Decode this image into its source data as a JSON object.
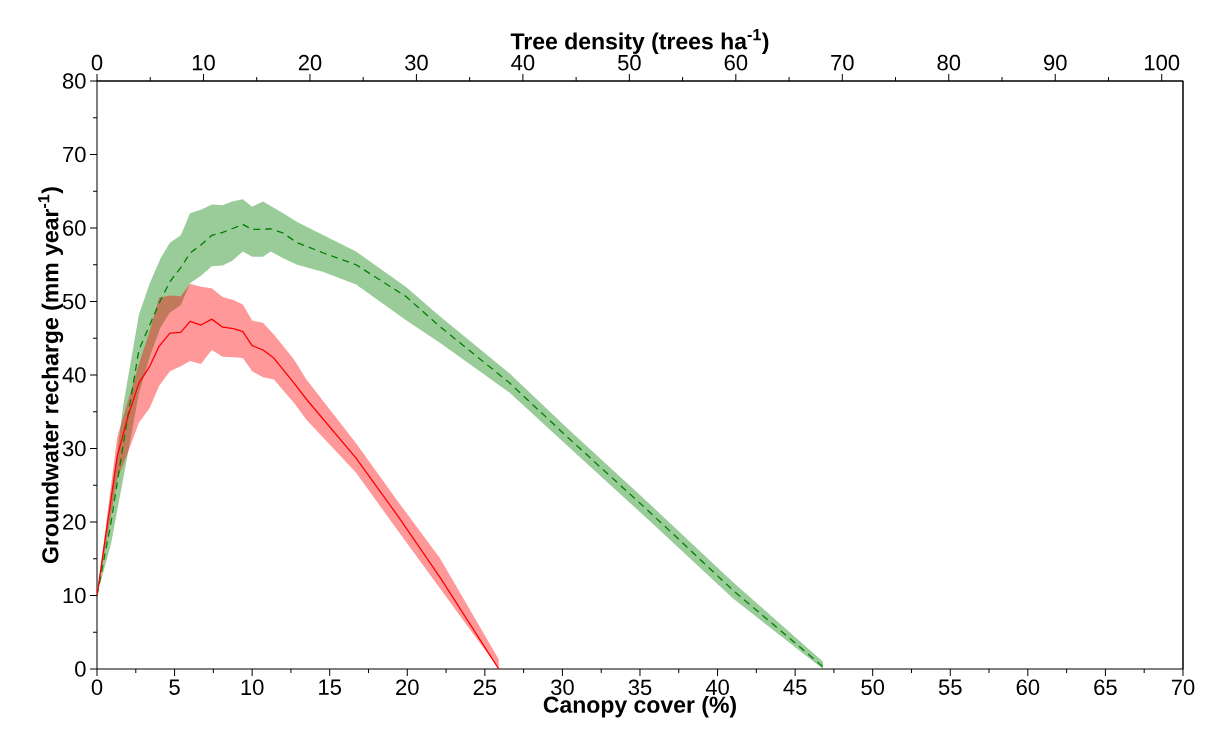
{
  "chart_data": {
    "type": "line",
    "xlabel": "Canopy cover (%)",
    "ylabel": "Groundwater recharge (mm year$^{-1}$)",
    "x2label": "Tree density (trees ha$^{-1}$)",
    "xlim": [
      0,
      70
    ],
    "xticks": [
      0,
      5,
      10,
      15,
      20,
      25,
      30,
      35,
      40,
      45,
      50,
      55,
      60,
      65,
      70
    ],
    "ylim": [
      0,
      80
    ],
    "yticks": [
      0,
      10,
      20,
      30,
      40,
      50,
      60,
      70,
      80
    ],
    "x2lim": [
      0,
      102
    ],
    "x2ticks": [
      0,
      10,
      20,
      30,
      40,
      50,
      60,
      70,
      80,
      90,
      100
    ],
    "series": [
      {
        "color": "#008000",
        "line_style": "dashed",
        "x": [
          0,
          0.9,
          1.7,
          2.7,
          3.4,
          4.1,
          4.7,
          5.4,
          6.0,
          6.7,
          7.4,
          8.1,
          8.7,
          9.4,
          10.0,
          10.7,
          11.2,
          12.0,
          12.9,
          14.6,
          16.7,
          19.9,
          22.1,
          26.6,
          30.3,
          35.7,
          41.0,
          46.8
        ],
        "values": [
          10,
          19.9,
          30.7,
          43.4,
          46.8,
          50.2,
          52.7,
          54.6,
          56.6,
          57.7,
          59.0,
          59.4,
          59.9,
          60.5,
          59.8,
          59.8,
          59.9,
          59.3,
          58.0,
          56.6,
          55.0,
          50.7,
          46.6,
          38.9,
          31.6,
          21.2,
          10.7,
          0.3
        ],
        "upper": [
          10,
          23,
          36,
          48.2,
          52.5,
          55.9,
          58.0,
          59.0,
          62.0,
          62.5,
          63.2,
          63.1,
          63.6,
          63.9,
          62.9,
          63.6,
          63.0,
          62.0,
          60.8,
          59.0,
          56.8,
          52.0,
          48.0,
          40.2,
          32.8,
          22.3,
          11.8,
          1.0
        ],
        "lower": [
          10,
          17,
          26,
          37.5,
          42.5,
          46.5,
          48.5,
          49.5,
          52.5,
          53.5,
          54.8,
          54.9,
          55.5,
          56.8,
          56.1,
          56.1,
          56.8,
          55.9,
          55.0,
          54.0,
          52.3,
          47.5,
          44.4,
          37.6,
          30.4,
          20.0,
          9.6,
          0
        ]
      },
      {
        "color": "#ff0000",
        "line_style": "solid",
        "x": [
          0,
          1.3,
          2.0,
          2.7,
          3.4,
          4.0,
          4.7,
          5.4,
          6.0,
          6.7,
          7.4,
          8.1,
          8.8,
          9.4,
          10.0,
          10.7,
          11.4,
          12.7,
          13.5,
          16.7,
          19.5,
          22.1,
          25.9
        ],
        "values": [
          10,
          28.9,
          34.4,
          38.9,
          41.2,
          43.9,
          45.7,
          45.8,
          47.3,
          46.8,
          47.6,
          46.5,
          46.3,
          45.9,
          44.0,
          43.4,
          42.3,
          38.9,
          36.7,
          28.7,
          20.5,
          12.5,
          0
        ],
        "upper": [
          10,
          31.5,
          36.5,
          41.5,
          46.0,
          50.5,
          50.8,
          50.7,
          52.4,
          52.0,
          51.8,
          50.6,
          50.2,
          49.6,
          47.4,
          47.1,
          45.5,
          42.1,
          39.4,
          30.7,
          22.5,
          15.1,
          1.3
        ],
        "lower": [
          10,
          25.8,
          29.5,
          33.5,
          35.5,
          38.5,
          40.5,
          41.2,
          41.9,
          41.5,
          43.4,
          42.5,
          42.4,
          42.3,
          40.5,
          39.7,
          39.4,
          36.2,
          33.9,
          26.7,
          18.5,
          11.0,
          0
        ]
      }
    ]
  }
}
